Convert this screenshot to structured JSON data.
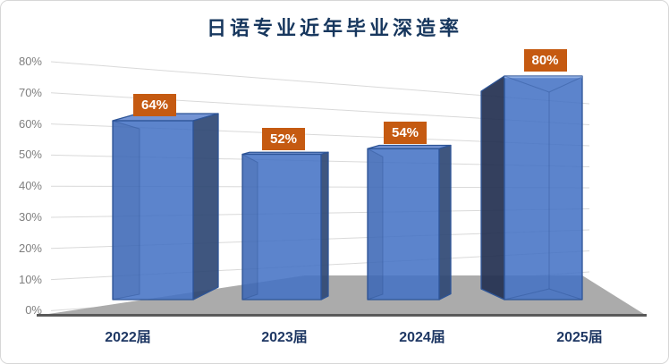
{
  "chart_data": {
    "type": "bar",
    "variant": "3d-column",
    "title": "日语专业近年毕业深造率",
    "categories": [
      "2022届",
      "2023届",
      "2024届",
      "2025届"
    ],
    "values": [
      64,
      52,
      54,
      80
    ],
    "data_labels": [
      "64%",
      "52%",
      "54%",
      "80%"
    ],
    "xlabel": "",
    "ylabel": "",
    "y_ticks": [
      {
        "value": 0,
        "label": "0%"
      },
      {
        "value": 10,
        "label": "10%"
      },
      {
        "value": 20,
        "label": "20%"
      },
      {
        "value": 30,
        "label": "30%"
      },
      {
        "value": 40,
        "label": "40%"
      },
      {
        "value": 50,
        "label": "50%"
      },
      {
        "value": 60,
        "label": "60%"
      },
      {
        "value": 70,
        "label": "70%"
      },
      {
        "value": 80,
        "label": "80%"
      }
    ],
    "ylim": [
      0,
      80
    ],
    "grid": true,
    "legend": "none",
    "colors": {
      "bar_front": "rgba(68,114,196,0.87)",
      "bar_side_right": "rgba(47,72,116,0.92)",
      "bar_side_dark_left": "rgba(35,48,80,0.92)",
      "bar_top": "rgba(104,139,208,0.92)",
      "bar_edge": "#2e5597",
      "bar_inner_edge": "rgba(46,85,151,0.45)",
      "label_bg": "#c55a11",
      "label_text": "#ffffff",
      "title_color": "#17375e",
      "axis_tick_color": "#7f7f7f",
      "category_color": "#1f3864",
      "gridline": "#d9d9d9",
      "floor": "#ababab",
      "floor_edge": "#595959",
      "background": "#ffffff",
      "border": "#d7d7d7"
    }
  }
}
